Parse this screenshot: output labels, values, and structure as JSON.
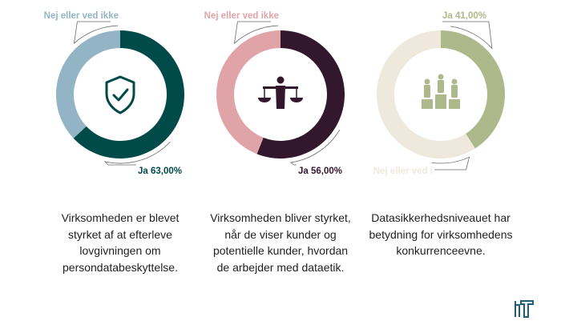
{
  "colors": {
    "bg": "#ffffff",
    "leader": "#6a6a6a"
  },
  "chart_data": [
    {
      "type": "pie",
      "variant": "donut",
      "icon": "shield-check-icon",
      "slices": [
        {
          "label": "Ja 63,00%",
          "category": "Ja",
          "value": 63.0,
          "color": "#004a4a"
        },
        {
          "label": "Nej eller ved ikke",
          "category": "Nej eller ved ikke",
          "value": 37.0,
          "color": "#92b4c4"
        }
      ],
      "caption": "Virksomheden er blevet styrket af at efterleve lovgivningen om persondatabeskyttelse.",
      "caption_lines": [
        "Virksomheden er blevet",
        "styrket af at efterleve",
        "lovgivningen om",
        "persondatabeskyttelse."
      ]
    },
    {
      "type": "pie",
      "variant": "donut",
      "icon": "scales-of-justice-icon",
      "slices": [
        {
          "label": "Ja 56,00%",
          "category": "Ja",
          "value": 56.0,
          "color": "#33172d"
        },
        {
          "label": "Nej eller ved ikke",
          "category": "Nej eller ved ikke",
          "value": 44.0,
          "color": "#e0a3a8"
        }
      ],
      "caption": "Virksomheden bliver styrket, når de viser kunder og potentielle kunder, hvordan de arbejder med dataetik.",
      "caption_lines": [
        "Virksomheden bliver styrket,",
        "når de viser kunder og",
        "potentielle kunder, hvordan",
        "de arbejder med dataetik."
      ]
    },
    {
      "type": "pie",
      "variant": "donut",
      "icon": "podium-people-icon",
      "slices": [
        {
          "label": "Ja 41,00%",
          "category": "Ja",
          "value": 41.0,
          "color": "#adb98a"
        },
        {
          "label": "Nej eller ved i",
          "category": "Nej eller ved ikke",
          "value": 59.0,
          "color": "#efe9dd"
        }
      ],
      "caption": "Datasikkerhedsniveauet har betydning for virksomhedens konkurrenceevne.",
      "caption_lines": [
        "Datasikkerhedsniveauet har",
        "betydning for virksomhedens",
        "konkurrenceevne."
      ]
    }
  ],
  "logo": {
    "icon": "it-logo-icon",
    "color": "#1f5d79"
  }
}
